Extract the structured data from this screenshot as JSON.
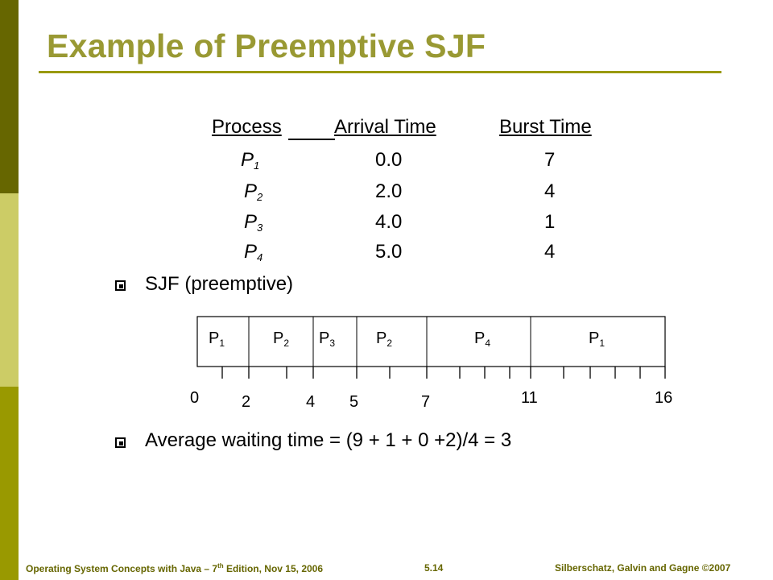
{
  "title": "Example of Preemptive SJF",
  "table": {
    "headers": [
      "Process",
      "Arrival Time",
      "Burst Time"
    ],
    "rows": [
      {
        "process": "P",
        "sub": "1",
        "arrival": "0.0",
        "burst": "7"
      },
      {
        "process": "P",
        "sub": "2",
        "arrival": "2.0",
        "burst": "4"
      },
      {
        "process": "P",
        "sub": "3",
        "arrival": "4.0",
        "burst": "1"
      },
      {
        "process": "P",
        "sub": "4",
        "arrival": "5.0",
        "burst": "4"
      }
    ]
  },
  "bullets": [
    "SJF (preemptive)",
    "Average waiting time = (9 + 1 + 0 +2)/4 = 3"
  ],
  "gantt": {
    "segments": [
      {
        "label": "P",
        "sub": "1",
        "start": 0,
        "end": 2
      },
      {
        "label": "P",
        "sub": "2",
        "start": 2,
        "end": 4
      },
      {
        "label": "P",
        "sub": "3",
        "start": 4,
        "end": 5
      },
      {
        "label": "P",
        "sub": "2",
        "start": 5,
        "end": 7
      },
      {
        "label": "P",
        "sub": "4",
        "start": 7,
        "end": 11
      },
      {
        "label": "P",
        "sub": "1",
        "start": 11,
        "end": 16
      }
    ],
    "time_labels": [
      "0",
      "2",
      "4",
      "5",
      "7",
      "11",
      "16"
    ],
    "ticks": [
      1,
      2,
      3,
      4,
      5,
      6,
      7,
      8,
      9,
      10,
      11,
      12,
      13,
      14,
      15,
      16
    ]
  },
  "footer": {
    "left_prefix": "Operating System Concepts with Java – 7",
    "left_sup": "th",
    "left_suffix": " Edition, Nov 15, 2006",
    "page": "5.14",
    "right": "Silberschatz, Galvin and Gagne ©2007"
  },
  "colors": {
    "accent": "#999933",
    "bar_dark": "#666600",
    "bar_light": "#cccc66",
    "bar_mid": "#999900"
  }
}
